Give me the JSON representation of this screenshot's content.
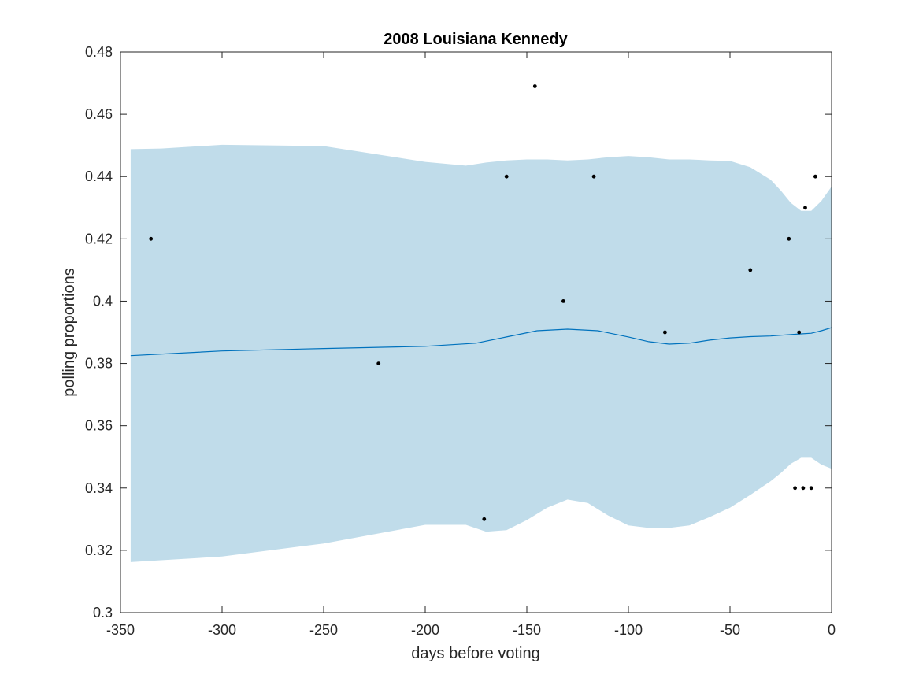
{
  "chart_data": {
    "type": "scatter",
    "title": "2008 Louisiana Kennedy",
    "xlabel": "days before voting",
    "ylabel": "polling proportions",
    "xlim": [
      -350,
      0
    ],
    "ylim": [
      0.3,
      0.48
    ],
    "xticks": [
      -350,
      -300,
      -250,
      -200,
      -150,
      -100,
      -50,
      0
    ],
    "xtick_labels": [
      "-350",
      "-300",
      "-250",
      "-200",
      "-150",
      "-100",
      "-50",
      "0"
    ],
    "yticks": [
      0.3,
      0.32,
      0.34,
      0.36,
      0.38,
      0.4,
      0.42,
      0.44,
      0.46,
      0.48
    ],
    "ytick_labels": [
      "0.3",
      "0.32",
      "0.34",
      "0.36",
      "0.38",
      "0.4",
      "0.42",
      "0.44",
      "0.46",
      "0.48"
    ],
    "grid": false,
    "colors": {
      "band": "#c0dcea",
      "trend": "#0072bd",
      "points": "#000000",
      "axes": "#262626"
    },
    "points": {
      "x": [
        -335,
        -223,
        -171,
        -160,
        -146,
        -132,
        -117,
        -82,
        -40,
        -21,
        -18,
        -16,
        -14,
        -13,
        -10,
        -8
      ],
      "y": [
        0.42,
        0.38,
        0.33,
        0.44,
        0.469,
        0.4,
        0.44,
        0.39,
        0.41,
        0.42,
        0.34,
        0.39,
        0.34,
        0.43,
        0.34,
        0.44
      ]
    },
    "trend": {
      "x": [
        -345,
        -300,
        -250,
        -200,
        -175,
        -160,
        -145,
        -130,
        -115,
        -100,
        -90,
        -80,
        -70,
        -60,
        -50,
        -40,
        -30,
        -20,
        -15,
        -10,
        -5,
        0
      ],
      "y": [
        0.3825,
        0.384,
        0.3848,
        0.3855,
        0.3865,
        0.3885,
        0.3905,
        0.391,
        0.3905,
        0.3885,
        0.387,
        0.3862,
        0.3865,
        0.3875,
        0.3882,
        0.3886,
        0.3888,
        0.3893,
        0.3895,
        0.3897,
        0.3905,
        0.3915
      ]
    },
    "band": {
      "x": [
        -345,
        -330,
        -300,
        -250,
        -200,
        -180,
        -170,
        -160,
        -150,
        -140,
        -130,
        -120,
        -110,
        -100,
        -90,
        -80,
        -70,
        -60,
        -50,
        -40,
        -30,
        -25,
        -20,
        -15,
        -10,
        -5,
        0
      ],
      "upper": [
        0.4488,
        0.449,
        0.4502,
        0.4498,
        0.4447,
        0.4435,
        0.4445,
        0.4452,
        0.4455,
        0.4455,
        0.4452,
        0.4455,
        0.4462,
        0.4466,
        0.4462,
        0.4455,
        0.4455,
        0.4452,
        0.445,
        0.443,
        0.439,
        0.4355,
        0.4315,
        0.429,
        0.429,
        0.4322,
        0.4368
      ],
      "lower": [
        0.3162,
        0.3168,
        0.318,
        0.3222,
        0.3282,
        0.3282,
        0.326,
        0.3265,
        0.3297,
        0.3337,
        0.3363,
        0.3352,
        0.3312,
        0.328,
        0.3272,
        0.3272,
        0.328,
        0.3307,
        0.3337,
        0.3378,
        0.3422,
        0.3448,
        0.3478,
        0.3497,
        0.3497,
        0.3475,
        0.3462
      ]
    }
  }
}
